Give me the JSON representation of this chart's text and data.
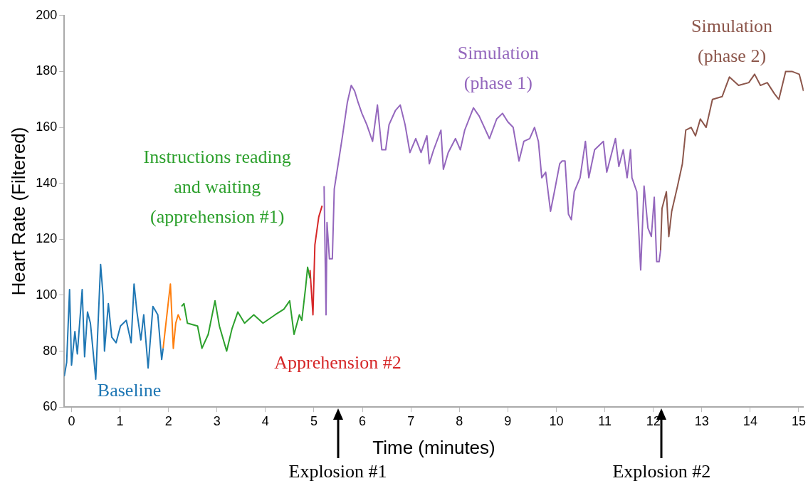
{
  "chart_data": {
    "type": "line",
    "xlabel": "Time (minutes)",
    "ylabel": "Heart Rate (Filtered)",
    "xlim": [
      -0.15,
      15.1
    ],
    "xticks": [
      0,
      1,
      2,
      3,
      4,
      5,
      6,
      7,
      8,
      9,
      10,
      11,
      12,
      13,
      14,
      15
    ],
    "ylim": [
      60,
      200
    ],
    "yticks": [
      60,
      80,
      100,
      120,
      140,
      160,
      180,
      200
    ],
    "grid": false,
    "legend": false,
    "series": [
      {
        "name": "Baseline",
        "color": "#1f77b4",
        "x": [
          -0.15,
          -0.1,
          -0.04,
          0,
          0.07,
          0.12,
          0.22,
          0.27,
          0.33,
          0.39,
          0.5,
          0.6,
          0.65,
          0.68,
          0.76,
          0.83,
          0.92,
          1.01,
          1.13,
          1.23,
          1.29,
          1.35,
          1.43,
          1.49,
          1.58,
          1.68,
          1.78,
          1.86,
          1.89
        ],
        "values": [
          71,
          76,
          102,
          75,
          87,
          79,
          102,
          78,
          94,
          90,
          70,
          111,
          100,
          80,
          97,
          85,
          83,
          89,
          91,
          83,
          104,
          94,
          84,
          93,
          74,
          96,
          93,
          77,
          81
        ]
      },
      {
        "color": "#ff7f0e",
        "x": [
          1.89,
          2.0,
          2.04,
          2.1,
          2.15,
          2.2,
          2.25
        ],
        "values": [
          81,
          98,
          104,
          81,
          90,
          93,
          91
        ]
      },
      {
        "name": "Instructions reading and waiting (apprehension #1)",
        "color": "#2ca02c",
        "x": [
          2.27,
          2.32,
          2.39,
          2.6,
          2.69,
          2.82,
          2.96,
          3.05,
          3.2,
          3.31,
          3.43,
          3.57,
          3.76,
          3.95,
          4.2,
          4.38,
          4.5,
          4.59,
          4.7,
          4.75,
          4.83,
          4.87,
          4.92
        ],
        "values": [
          96,
          97,
          90,
          89,
          81,
          86,
          98,
          89,
          80,
          88,
          94,
          90,
          93,
          90,
          93,
          95,
          98,
          86,
          93,
          91,
          103,
          110,
          106
        ]
      },
      {
        "name": "Apprehension #2",
        "color": "#d62728",
        "x": [
          4.92,
          4.98,
          5.02,
          5.1,
          5.17
        ],
        "values": [
          109,
          93,
          118,
          128,
          132
        ]
      },
      {
        "name": "Simulation (phase 1)",
        "color": "#9467bd",
        "x": [
          5.21,
          5.25,
          5.27,
          5.32,
          5.38,
          5.42,
          5.51,
          5.59,
          5.69,
          5.77,
          5.84,
          5.91,
          5.99,
          6.09,
          6.21,
          6.31,
          6.4,
          6.48,
          6.55,
          6.68,
          6.78,
          6.88,
          6.98,
          7.1,
          7.21,
          7.33,
          7.38,
          7.47,
          7.62,
          7.67,
          7.77,
          7.92,
          8.02,
          8.11,
          8.29,
          8.41,
          8.62,
          8.77,
          8.89,
          9.0,
          9.11,
          9.23,
          9.33,
          9.45,
          9.55,
          9.63,
          9.7,
          9.78,
          9.88,
          9.96,
          10.07,
          10.12,
          10.18,
          10.25,
          10.31,
          10.37,
          10.49,
          10.6,
          10.67,
          10.79,
          10.97,
          11.04,
          11.22,
          11.29,
          11.38,
          11.46,
          11.53,
          11.56,
          11.66,
          11.74,
          11.81,
          11.89,
          11.96,
          12.02,
          12.07,
          12.12,
          12.15
        ],
        "values": [
          139,
          93,
          126,
          113,
          113,
          138,
          148,
          157,
          169,
          175,
          173,
          169,
          165,
          161,
          155,
          168,
          152,
          152,
          161,
          166,
          168,
          161,
          151,
          156,
          151,
          157,
          147,
          152,
          159,
          145,
          151,
          156,
          152,
          159,
          167,
          164,
          156,
          163,
          165,
          162,
          160,
          148,
          155,
          156,
          160,
          155,
          142,
          144,
          130,
          137,
          147,
          148,
          148,
          129,
          127,
          137,
          142,
          155,
          142,
          152,
          155,
          144,
          156,
          146,
          152,
          142,
          152,
          142,
          137,
          109,
          139,
          124,
          121,
          135,
          112,
          112,
          116
        ]
      },
      {
        "name": "Simulation (phase 2)",
        "color": "#8c564b",
        "x": [
          12.15,
          12.18,
          12.27,
          12.32,
          12.38,
          12.5,
          12.6,
          12.67,
          12.78,
          12.87,
          12.97,
          13.09,
          13.22,
          13.42,
          13.57,
          13.76,
          13.97,
          14.09,
          14.21,
          14.35,
          14.5,
          14.59,
          14.73,
          14.86,
          15.01,
          15.1
        ],
        "values": [
          116,
          131,
          137,
          121,
          130,
          139,
          147,
          159,
          160,
          157,
          163,
          160,
          170,
          171,
          178,
          175,
          176,
          179,
          175,
          176,
          172,
          170,
          180,
          180,
          179,
          173
        ]
      }
    ],
    "annotations": [
      "Explosion #1",
      "Explosion #2"
    ]
  }
}
